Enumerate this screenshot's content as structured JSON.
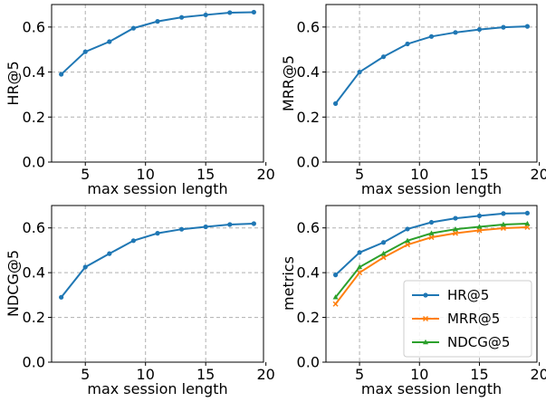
{
  "chart_data": [
    {
      "type": "line",
      "title": "",
      "xlabel": "max session length",
      "ylabel": "HR@5",
      "xlim": [
        2.2,
        19.8
      ],
      "ylim": [
        0.0,
        0.7
      ],
      "xticks": [
        5,
        10,
        15,
        20
      ],
      "yticks": [
        0.0,
        0.2,
        0.4,
        0.6
      ],
      "grid": true,
      "x": [
        3,
        5,
        7,
        9,
        11,
        13,
        15,
        17,
        19
      ],
      "series": [
        {
          "name": "",
          "color": "#1f77b4",
          "marker": "circle",
          "values": [
            0.39,
            0.49,
            0.535,
            0.595,
            0.625,
            0.643,
            0.654,
            0.664,
            0.666
          ]
        }
      ],
      "legend": null
    },
    {
      "type": "line",
      "title": "",
      "xlabel": "max session length",
      "ylabel": "MRR@5",
      "xlim": [
        2.2,
        19.8
      ],
      "ylim": [
        0.0,
        0.7
      ],
      "xticks": [
        5,
        10,
        15,
        20
      ],
      "yticks": [
        0.0,
        0.2,
        0.4,
        0.6
      ],
      "grid": true,
      "x": [
        3,
        5,
        7,
        9,
        11,
        13,
        15,
        17,
        19
      ],
      "series": [
        {
          "name": "",
          "color": "#1f77b4",
          "marker": "circle",
          "values": [
            0.26,
            0.4,
            0.468,
            0.525,
            0.558,
            0.576,
            0.589,
            0.599,
            0.603
          ]
        }
      ],
      "legend": null
    },
    {
      "type": "line",
      "title": "",
      "xlabel": "max session length",
      "ylabel": "NDCG@5",
      "xlim": [
        2.2,
        19.8
      ],
      "ylim": [
        0.0,
        0.7
      ],
      "xticks": [
        5,
        10,
        15,
        20
      ],
      "yticks": [
        0.0,
        0.2,
        0.4,
        0.6
      ],
      "grid": true,
      "x": [
        3,
        5,
        7,
        9,
        11,
        13,
        15,
        17,
        19
      ],
      "series": [
        {
          "name": "",
          "color": "#1f77b4",
          "marker": "circle",
          "values": [
            0.29,
            0.425,
            0.485,
            0.543,
            0.576,
            0.594,
            0.605,
            0.615,
            0.619
          ]
        }
      ],
      "legend": null
    },
    {
      "type": "line",
      "title": "",
      "xlabel": "max session length",
      "ylabel": "metrics",
      "xlim": [
        2.2,
        19.8
      ],
      "ylim": [
        0.0,
        0.7
      ],
      "xticks": [
        5,
        10,
        15,
        20
      ],
      "yticks": [
        0.0,
        0.2,
        0.4,
        0.6
      ],
      "grid": true,
      "x": [
        3,
        5,
        7,
        9,
        11,
        13,
        15,
        17,
        19
      ],
      "series": [
        {
          "name": "HR@5",
          "color": "#1f77b4",
          "marker": "circle",
          "values": [
            0.39,
            0.49,
            0.535,
            0.595,
            0.625,
            0.643,
            0.654,
            0.664,
            0.666
          ]
        },
        {
          "name": "MRR@5",
          "color": "#ff7f0e",
          "marker": "x",
          "values": [
            0.26,
            0.4,
            0.468,
            0.525,
            0.558,
            0.576,
            0.589,
            0.599,
            0.603
          ]
        },
        {
          "name": "NDCG@5",
          "color": "#2ca02c",
          "marker": "triangle",
          "values": [
            0.29,
            0.425,
            0.485,
            0.543,
            0.576,
            0.594,
            0.605,
            0.615,
            0.619
          ]
        }
      ],
      "legend": "bottom-right"
    }
  ]
}
